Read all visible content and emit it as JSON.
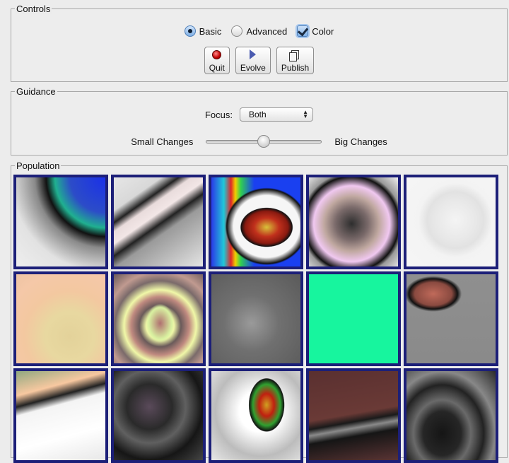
{
  "controls": {
    "title": "Controls",
    "mode_options": [
      {
        "label": "Basic",
        "selected": true
      },
      {
        "label": "Advanced",
        "selected": false
      }
    ],
    "color_checkbox": {
      "label": "Color",
      "checked": true
    },
    "buttons": [
      {
        "label": "Quit",
        "icon": "stop-icon"
      },
      {
        "label": "Evolve",
        "icon": "play-icon"
      },
      {
        "label": "Publish",
        "icon": "publish-icon"
      }
    ]
  },
  "guidance": {
    "title": "Guidance",
    "focus_label": "Focus:",
    "focus_value": "Both",
    "slider_min_label": "Small Changes",
    "slider_max_label": "Big Changes",
    "slider_value_fraction": 0.5
  },
  "population": {
    "title": "Population",
    "cell_count": 15,
    "selected_border_color": "#1c1f78"
  }
}
